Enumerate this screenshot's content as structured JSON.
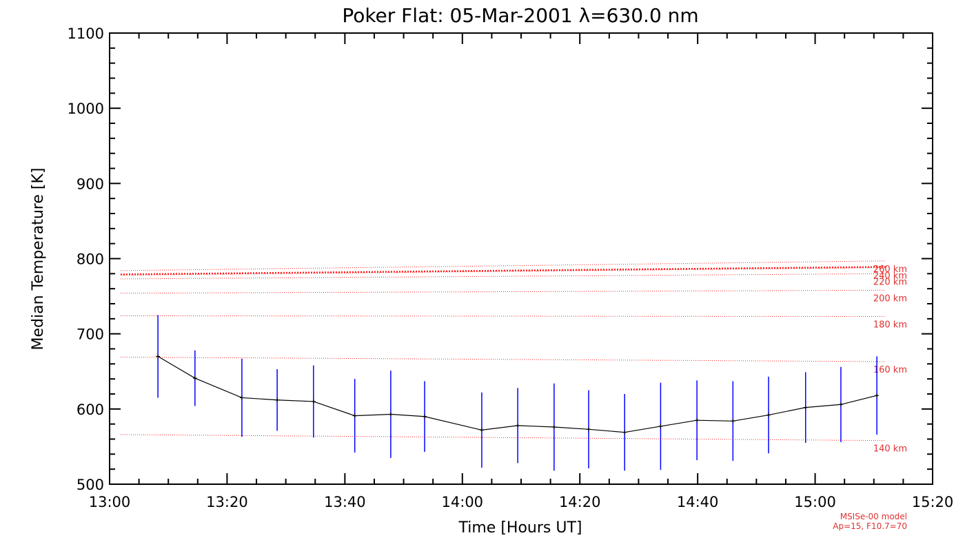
{
  "chart_data": {
    "type": "line",
    "title": "Poker Flat: 05-Mar-2001 λ=630.0 nm",
    "xlabel": "Time [Hours UT]",
    "ylabel": "Median Temperature [K]",
    "xlim": [
      13.0,
      15.333
    ],
    "ylim": [
      500,
      1100
    ],
    "xticks": [
      {
        "value": 13.0,
        "label": "13:00"
      },
      {
        "value": 13.333,
        "label": "13:20"
      },
      {
        "value": 13.667,
        "label": "13:40"
      },
      {
        "value": 14.0,
        "label": "14:00"
      },
      {
        "value": 14.333,
        "label": "14:20"
      },
      {
        "value": 14.667,
        "label": "14:40"
      },
      {
        "value": 15.0,
        "label": "15:00"
      },
      {
        "value": 15.333,
        "label": "15:20"
      }
    ],
    "yticks": [
      {
        "value": 500,
        "label": "500"
      },
      {
        "value": 600,
        "label": "600"
      },
      {
        "value": 700,
        "label": "700"
      },
      {
        "value": 800,
        "label": "800"
      },
      {
        "value": 900,
        "label": "900"
      },
      {
        "value": 1000,
        "label": "1000"
      },
      {
        "value": 1100,
        "label": "1100"
      }
    ],
    "series": [
      {
        "name": "Median Temperature",
        "color": "#000000",
        "error_color": "#0000ff",
        "x": [
          13.137,
          13.242,
          13.375,
          13.475,
          13.578,
          13.695,
          13.797,
          13.893,
          14.055,
          14.157,
          14.26,
          14.358,
          14.46,
          14.562,
          14.665,
          14.767,
          14.868,
          14.973,
          15.073,
          15.175
        ],
        "y": [
          670,
          641,
          615,
          612,
          610,
          591,
          593,
          590,
          572,
          578,
          576,
          573,
          569,
          577,
          585,
          584,
          592,
          602,
          606,
          618
        ],
        "err": [
          55,
          37,
          52,
          41,
          48,
          49,
          58,
          47,
          50,
          50,
          58,
          52,
          51,
          58,
          53,
          53,
          51,
          47,
          50,
          52
        ]
      }
    ],
    "model_lines": [
      {
        "label": "140 km",
        "start": 566,
        "end": 558
      },
      {
        "label": "160 km",
        "start": 669,
        "end": 663
      },
      {
        "label": "180 km",
        "start": 724,
        "end": 723
      },
      {
        "label": "200 km",
        "start": 754,
        "end": 758
      },
      {
        "label": "220 km",
        "start": 773,
        "end": 780
      },
      {
        "label": "240 km",
        "start": 778,
        "end": 788
      },
      {
        "label": "260 km",
        "start": 784,
        "end": 797
      }
    ],
    "model_highlight": {
      "start": 779,
      "end": 789
    },
    "model_color": "#ff2020",
    "annotation": [
      "MSISe-00 model",
      "Ap=15, F10.7=70"
    ]
  }
}
